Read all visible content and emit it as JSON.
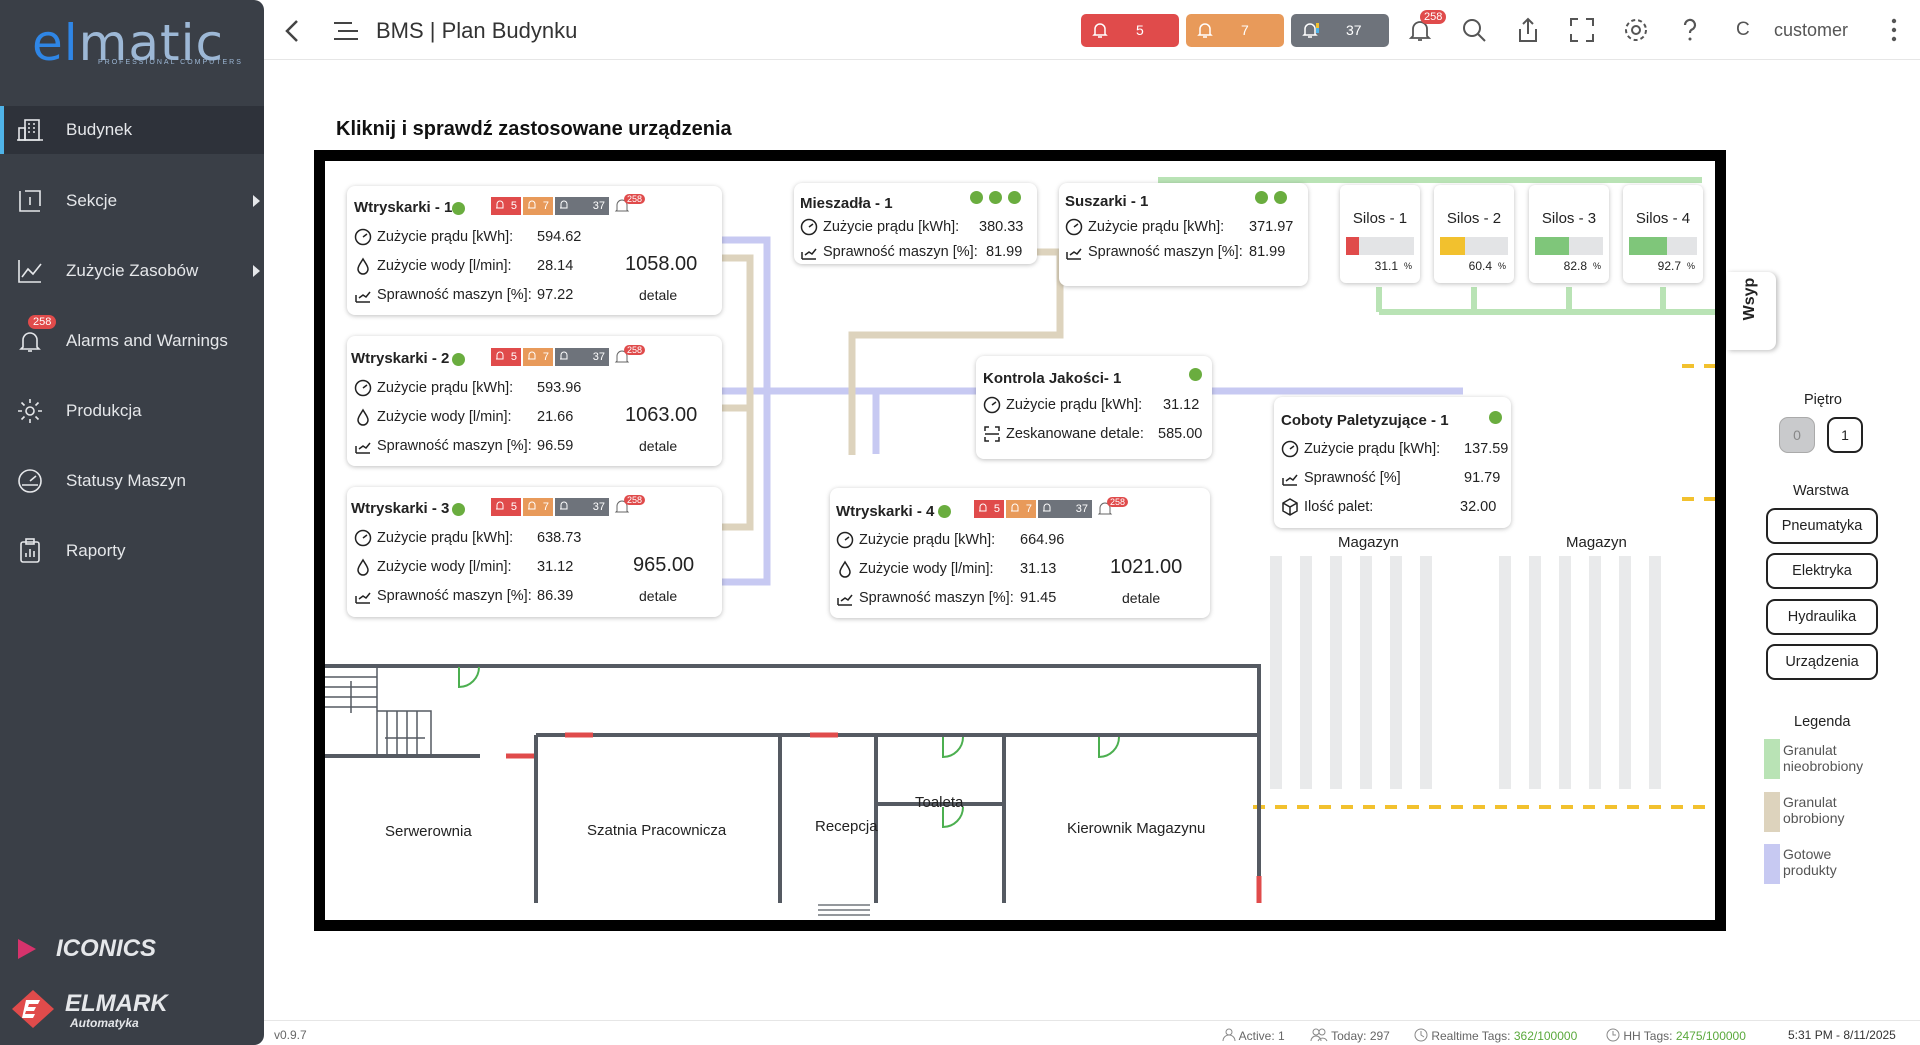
{
  "sidebar": {
    "logo": {
      "main_e": "el",
      "main_rest": "matic",
      "sub": "PROFESSIONAL COMPUTERS"
    },
    "items": [
      {
        "label": "Budynek",
        "icon": "building-icon"
      },
      {
        "label": "Sekcje",
        "icon": "sections-icon"
      },
      {
        "label": "Zużycie Zasobów",
        "icon": "chart-line-icon"
      },
      {
        "label": "Alarms and Warnings",
        "icon": "bell-icon",
        "badge": "258"
      },
      {
        "label": "Produkcja",
        "icon": "gear-icon"
      },
      {
        "label": "Statusy Maszyn",
        "icon": "gauge-icon"
      },
      {
        "label": "Raporty",
        "icon": "clipboard-icon"
      }
    ],
    "footer_logos": {
      "iconics": "ICONICS",
      "elmark": "ELMARK",
      "elmark_sub": "Automatyka"
    }
  },
  "header": {
    "title": "BMS | Plan Budynku",
    "alarms": {
      "red": "5",
      "orange": "7",
      "gray": "37"
    },
    "bell_badge": "258",
    "user_initial": "C",
    "user": "customer"
  },
  "plan": {
    "heading": "Kliknij i sprawdź zastosowane urządzenia",
    "mini_alarms": {
      "red": "5",
      "orange": "7",
      "gray": "37",
      "bell": "258"
    },
    "wtr1": {
      "title": "Wtryskarki - 1",
      "l1": "Zużycie prądu [kWh]:",
      "v1": "594.62",
      "l2": "Zużycie wody [l/min]:",
      "v2": "28.14",
      "l3": "Sprawność maszyn [%]:",
      "v3": "97.22",
      "big": "1058.00",
      "det": "detale"
    },
    "wtr2": {
      "title": "Wtryskarki - 2",
      "l1": "Zużycie prądu [kWh]:",
      "v1": "593.96",
      "l2": "Zużycie wody [l/min]:",
      "v2": "21.66",
      "l3": "Sprawność maszyn [%]:",
      "v3": "96.59",
      "big": "1063.00",
      "det": "detale"
    },
    "wtr3": {
      "title": "Wtryskarki - 3",
      "l1": "Zużycie prądu [kWh]:",
      "v1": "638.73",
      "l2": "Zużycie wody [l/min]:",
      "v2": "31.12",
      "l3": "Sprawność maszyn [%]:",
      "v3": "86.39",
      "big": "965.00",
      "det": "detale"
    },
    "wtr4": {
      "title": "Wtryskarki - 4",
      "l1": "Zużycie prądu [kWh]:",
      "v1": "664.96",
      "l2": "Zużycie wody [l/min]:",
      "v2": "31.13",
      "l3": "Sprawność maszyn [%]:",
      "v3": "91.45",
      "big": "1021.00",
      "det": "detale"
    },
    "mieszadla": {
      "title": "Mieszadła - 1",
      "l1": "Zużycie prądu [kWh]:",
      "v1": "380.33",
      "l2": "Sprawność maszyn [%]:",
      "v2": "81.99"
    },
    "suszarki": {
      "title": "Suszarki - 1",
      "l1": "Zużycie prądu [kWh]:",
      "v1": "371.97",
      "l2": "Sprawność maszyn [%]:",
      "v2": "81.99"
    },
    "kontrola": {
      "title": "Kontrola Jakości- 1",
      "l1": "Zużycie prądu [kWh]:",
      "v1": "31.12",
      "l2": "Zeskanowane detale:",
      "v2": "585.00"
    },
    "coboty": {
      "title": "Coboty Paletyzujące - 1",
      "l1": "Zużycie prądu [kWh]:",
      "v1": "137.59",
      "l2": "Sprawność [%]",
      "v2": "91.79",
      "l3": "Ilość palet:",
      "v3": "32.00"
    },
    "silos": [
      {
        "name": "Silos - 1",
        "value": "31.1",
        "level": 31.1,
        "color": "#e04b4b"
      },
      {
        "name": "Silos - 2",
        "value": "60.4",
        "level": 60.4,
        "color": "#f2c12e"
      },
      {
        "name": "Silos - 3",
        "value": "82.8",
        "level": 82.8,
        "color": "#7fc67a"
      },
      {
        "name": "Silos - 4",
        "value": "92.7",
        "level": 92.7,
        "color": "#7fc67a"
      }
    ],
    "silo_unit": "%",
    "wsyp": "Wsyp",
    "magazyn1": "Magazyn",
    "magazyn2": "Magazyn",
    "rooms": {
      "serwerownia": "Serwerownia",
      "szatnia": "Szatnia Pracownicza",
      "recepcja": "Recepcja",
      "toaleta": "Toaleta",
      "kierownik": "Kierownik Magazynu"
    }
  },
  "right_panel": {
    "pietro": "Piętro",
    "floors": [
      "0",
      "1"
    ],
    "warstwa": "Warstwa",
    "layers": [
      "Pneumatyka",
      "Elektryka",
      "Hydraulika",
      "Urządzenia"
    ],
    "legenda": "Legenda",
    "legend": [
      {
        "l1": "Granulat",
        "l2": "nieobrobiony",
        "color": "#b9e3b5"
      },
      {
        "l1": "Granulat",
        "l2": "obrobiony",
        "color": "#ddd3bd"
      },
      {
        "l1": "Gotowe",
        "l2": "produkty",
        "color": "#c7c9f2"
      }
    ]
  },
  "footer": {
    "version": "v0.9.7",
    "active_label": "Active:",
    "active": "1",
    "today_label": "Today:",
    "today": "297",
    "rt_label": "Realtime Tags:",
    "rt": "362/100000",
    "hh_label": "HH Tags:",
    "hh": "2475/100000",
    "time": "5:31 PM - 8/11/2025"
  },
  "colors": {
    "sidebar": "#3a3f47",
    "accent": "#4fb3e8",
    "alarm_red": "#e04b4b",
    "alarm_orange": "#e89a5a",
    "alarm_gray": "#6e737b",
    "ok_green": "#6aad3f"
  }
}
